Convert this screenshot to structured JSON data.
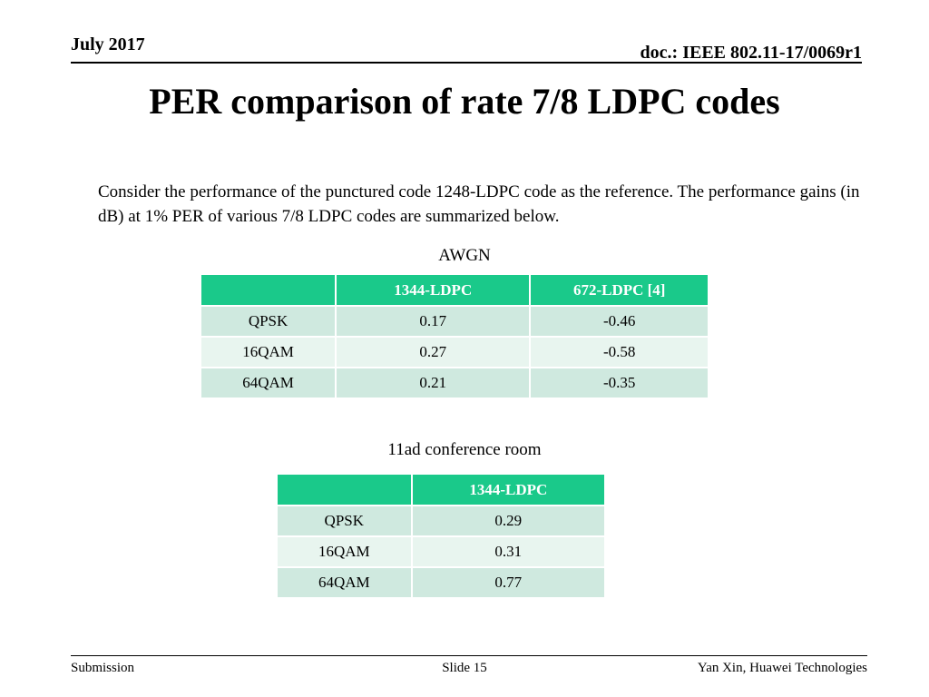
{
  "header": {
    "date": "July 2017",
    "doc": "doc.: IEEE 802.11-17/0069r1"
  },
  "title": "PER comparison of rate 7/8 LDPC codes",
  "body": "Consider the performance of the punctured code 1248-LDPC code as the reference. The performance gains (in dB) at 1% PER of various 7/8 LDPC codes are summarized below.",
  "awgn": {
    "caption": "AWGN",
    "columns": [
      "",
      "1344-LDPC",
      "672-LDPC [4]"
    ],
    "rows": [
      [
        "QPSK",
        "0.17",
        "-0.46"
      ],
      [
        "16QAM",
        "0.27",
        "-0.58"
      ],
      [
        "64QAM",
        "0.21",
        "-0.35"
      ]
    ]
  },
  "conf": {
    "caption": "11ad conference room",
    "columns": [
      "",
      "1344-LDPC"
    ],
    "rows": [
      [
        "QPSK",
        "0.29"
      ],
      [
        "16QAM",
        "0.31"
      ],
      [
        "64QAM",
        "0.77"
      ]
    ]
  },
  "footer": {
    "left": "Submission",
    "center": "Slide 15",
    "right": "Yan Xin, Huawei Technologies"
  }
}
